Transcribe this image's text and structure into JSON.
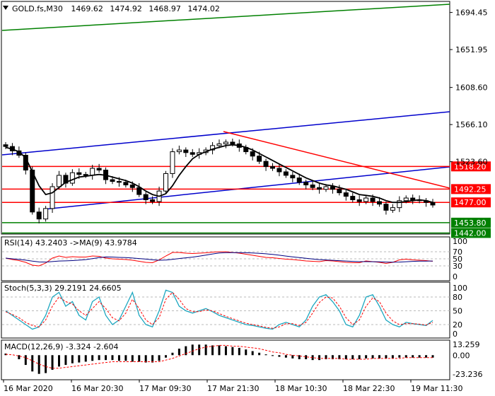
{
  "header": {
    "symbol": "GOLD.fs,M30",
    "open": "1469.62",
    "high": "1474.92",
    "low": "1468.97",
    "close": "1474.02"
  },
  "price_axis": {
    "ticks": [
      "1694.45",
      "1651.95",
      "1608.60",
      "1566.10",
      "1523.60"
    ],
    "level_labels": [
      {
        "text": "1518.20",
        "value": 1518.2,
        "color": "#ff0000"
      },
      {
        "text": "1492.25",
        "value": 1492.25,
        "color": "#ff0000"
      },
      {
        "text": "1477.00",
        "value": 1477.0,
        "color": "#ff0000"
      },
      {
        "text": "1453.80",
        "value": 1453.8,
        "color": "#008000"
      },
      {
        "text": "1442.00",
        "value": 1442.0,
        "color": "#008000"
      }
    ]
  },
  "time_axis": [
    "16 Mar 2020",
    "16 Mar 20:30",
    "17 Mar 09:30",
    "17 Mar 21:30",
    "18 Mar 10:30",
    "18 Mar 22:30",
    "19 Mar 11:30"
  ],
  "rsi": {
    "label": "RSI(14) 43.2403 ->MA(9) 43.9784",
    "ticks": [
      "100",
      "70",
      "50",
      "30",
      "0"
    ]
  },
  "stoch": {
    "label": "Stoch(5,3,3) 29.2191 24.6605",
    "ticks": [
      "100",
      "80",
      "50",
      "20",
      "0"
    ]
  },
  "macd": {
    "label": "MACD(12,26,9) -3.324 -2.604",
    "ticks": [
      "13.259",
      "0.00",
      "-23.236"
    ]
  },
  "colors": {
    "candle": "#000000",
    "ma": "#000000",
    "resistance": "#ff0000",
    "support": "#008000",
    "channel": "#0000cc",
    "rsi_line": "#ff0000",
    "stoch_main": "#1ca7c0",
    "stoch_signal": "#ff0000",
    "macd_hist": "#000000",
    "macd_signal": "#ff0000"
  },
  "chart_data": {
    "type": "candlestick",
    "instrument": "GOLD.fs",
    "timeframe": "M30",
    "close_series": [
      1541,
      1536,
      1531,
      1514,
      1466,
      1458,
      1470,
      1495,
      1508,
      1499,
      1511,
      1509,
      1508,
      1516,
      1514,
      1503,
      1501,
      1500,
      1497,
      1494,
      1486,
      1480,
      1478,
      1490,
      1510,
      1535,
      1537,
      1534,
      1532,
      1534,
      1537,
      1542,
      1544,
      1546,
      1544,
      1540,
      1535,
      1530,
      1524,
      1518,
      1516,
      1512,
      1508,
      1505,
      1500,
      1497,
      1494,
      1492,
      1495,
      1492,
      1488,
      1484,
      1480,
      1478,
      1482,
      1478,
      1475,
      1468,
      1471,
      1479,
      1482,
      1480,
      1479,
      1477,
      1474
    ],
    "ma_series": [
      1540,
      1538,
      1535,
      1528,
      1512,
      1496,
      1486,
      1488,
      1494,
      1500,
      1503,
      1506,
      1507,
      1508,
      1509,
      1508,
      1506,
      1504,
      1502,
      1499,
      1495,
      1490,
      1486,
      1484,
      1487,
      1496,
      1508,
      1518,
      1527,
      1532,
      1535,
      1538,
      1540,
      1542,
      1543,
      1542,
      1540,
      1537,
      1533,
      1529,
      1525,
      1521,
      1517,
      1513,
      1509,
      1505,
      1502,
      1499,
      1497,
      1496,
      1494,
      1492,
      1489,
      1486,
      1485,
      1484,
      1482,
      1479,
      1477,
      1477,
      1478,
      1479,
      1480,
      1479,
      1477
    ],
    "horizontal_levels": [
      1518.2,
      1492.25,
      1477.0,
      1453.8,
      1442.0
    ],
    "rsi_series": [
      52,
      48,
      45,
      40,
      32,
      30,
      38,
      52,
      58,
      54,
      56,
      55,
      55,
      58,
      57,
      52,
      50,
      49,
      48,
      46,
      43,
      40,
      39,
      47,
      58,
      68,
      68,
      66,
      65,
      66,
      67,
      69,
      70,
      70,
      68,
      66,
      63,
      60,
      57,
      54,
      53,
      51,
      49,
      48,
      46,
      44,
      43,
      42,
      45,
      44,
      42,
      40,
      39,
      39,
      44,
      42,
      40,
      37,
      40,
      47,
      49,
      47,
      46,
      45,
      43
    ],
    "stoch_main": [
      50,
      40,
      30,
      20,
      10,
      15,
      40,
      80,
      90,
      60,
      70,
      40,
      30,
      70,
      80,
      40,
      20,
      30,
      60,
      90,
      40,
      20,
      15,
      50,
      95,
      90,
      60,
      50,
      45,
      50,
      55,
      48,
      40,
      35,
      30,
      25,
      20,
      18,
      15,
      12,
      10,
      20,
      25,
      20,
      15,
      30,
      60,
      80,
      85,
      70,
      50,
      20,
      15,
      40,
      80,
      85,
      60,
      30,
      20,
      15,
      25,
      22,
      20,
      18,
      29
    ],
    "stoch_signal": [
      48,
      42,
      35,
      25,
      18,
      15,
      30,
      60,
      80,
      70,
      65,
      50,
      40,
      55,
      70,
      55,
      35,
      28,
      45,
      75,
      55,
      30,
      20,
      35,
      75,
      90,
      75,
      55,
      48,
      48,
      52,
      50,
      44,
      38,
      33,
      28,
      23,
      20,
      17,
      14,
      12,
      15,
      22,
      22,
      18,
      25,
      45,
      68,
      80,
      78,
      60,
      35,
      20,
      30,
      60,
      78,
      70,
      45,
      28,
      20,
      22,
      22,
      21,
      19,
      25
    ],
    "macd_series": [
      2,
      0,
      -5,
      -12,
      -20,
      -23,
      -22,
      -18,
      -14,
      -12,
      -10,
      -9,
      -8,
      -7,
      -6,
      -6,
      -6,
      -7,
      -7,
      -8,
      -8,
      -9,
      -9,
      -7,
      -3,
      3,
      8,
      11,
      13,
      13,
      13,
      12,
      12,
      11,
      10,
      9,
      7,
      5,
      3,
      1,
      -1,
      -2,
      -3,
      -4,
      -5,
      -5,
      -6,
      -6,
      -5,
      -5,
      -5,
      -5,
      -5,
      -5,
      -4,
      -4,
      -4,
      -4,
      -4,
      -3,
      -3,
      -3,
      -3,
      -3,
      -3
    ],
    "macd_signal": [
      1,
      0.5,
      -1,
      -3,
      -7,
      -11,
      -14,
      -16,
      -16,
      -15,
      -14,
      -13,
      -12,
      -11,
      -10,
      -9,
      -8,
      -8,
      -8,
      -8,
      -8,
      -8,
      -8,
      -8,
      -6,
      -4,
      -1,
      2,
      5,
      8,
      10,
      11,
      12,
      12,
      11,
      11,
      10,
      9,
      8,
      6,
      4,
      3,
      1,
      0,
      -1,
      -2,
      -3,
      -4,
      -4,
      -4,
      -4,
      -5,
      -5,
      -5,
      -5,
      -4,
      -4,
      -4,
      -4,
      -4,
      -3,
      -3,
      -3,
      -3,
      -3
    ]
  }
}
